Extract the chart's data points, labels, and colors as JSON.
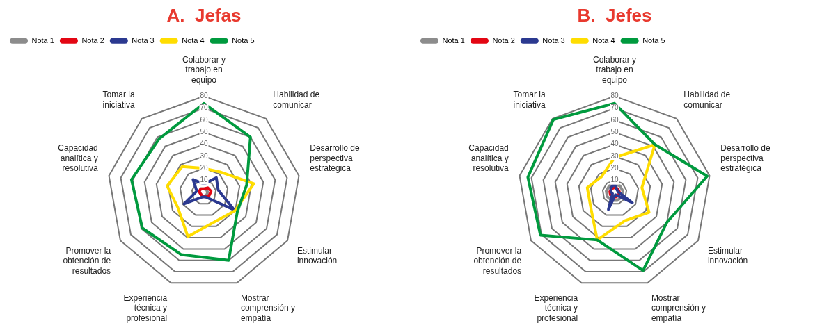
{
  "chart_data": [
    {
      "type": "radar",
      "title": "A.  Jefas",
      "categories": [
        "Colaborar y trabajo en equipo",
        "Habilidad de comunicar",
        "Desarrollo de perspectiva estratégica",
        "Estimular innovación",
        "Mostrar comprensión y empatía",
        "Experiencia técnica y profesional",
        "Promover la obtención de resultados",
        "Capacidad analítica y resolutiva",
        "Tomar la iniciativa"
      ],
      "ylim": [
        0,
        80
      ],
      "yticks": [
        10,
        20,
        30,
        40,
        50,
        60,
        70,
        80
      ],
      "grid": true,
      "legend": "top left",
      "marker": "none",
      "series": [
        {
          "name": "Nota 1",
          "color": "#8c8c8c",
          "values": [
            3,
            3,
            3,
            3,
            3,
            3,
            3,
            4,
            4
          ]
        },
        {
          "name": "Nota 2",
          "color": "#e30613",
          "values": [
            3,
            5,
            6,
            5,
            4,
            3,
            3,
            4,
            4
          ]
        },
        {
          "name": "Nota 3",
          "color": "#2b3990",
          "values": [
            7,
            16,
            12,
            29,
            4,
            4,
            19,
            6,
            14
          ]
        },
        {
          "name": "Nota 4",
          "color": "#ffdd00",
          "values": [
            20,
            22,
            42,
            30,
            26,
            39,
            25,
            31,
            28
          ]
        },
        {
          "name": "Nota 5",
          "color": "#009a3e",
          "values": [
            74,
            60,
            36,
            32,
            60,
            55,
            59,
            61,
            58
          ]
        }
      ]
    },
    {
      "type": "radar",
      "title": "B.  Jefes",
      "categories": [
        "Colaborar y trabajo en equipo",
        "Habilidad de comunicar",
        "Desarrollo de perspectiva estratégica",
        "Estimular innovación",
        "Mostrar comprensión y empatía",
        "Experiencia técnica y profesional",
        "Promover la obtención de resultados",
        "Capacidad analítica y resolutiva",
        "Tomar la iniciativa"
      ],
      "ylim": [
        0,
        80
      ],
      "yticks": [
        10,
        20,
        30,
        40,
        50,
        60,
        70,
        80
      ],
      "grid": true,
      "legend": "top left",
      "marker": "none",
      "series": [
        {
          "name": "Nota 1",
          "color": "#8c8c8c",
          "values": [
            7,
            7,
            7,
            7,
            7,
            7,
            7,
            7,
            7
          ]
        },
        {
          "name": "Nota 2",
          "color": "#e30613",
          "values": [
            4,
            4,
            4,
            4,
            4,
            4,
            4,
            4,
            4
          ]
        },
        {
          "name": "Nota 3",
          "color": "#2b3990",
          "values": [
            7,
            3,
            3,
            17,
            2,
            15,
            2,
            3,
            5
          ]
        },
        {
          "name": "Nota 4",
          "color": "#ffdd00",
          "values": [
            29,
            52,
            23,
            33,
            25,
            42,
            23,
            23,
            17
          ]
        },
        {
          "name": "Nota 5",
          "color": "#009a3e",
          "values": [
            74,
            52,
            78,
            50,
            69,
            42,
            71,
            73,
            79
          ]
        }
      ]
    }
  ]
}
